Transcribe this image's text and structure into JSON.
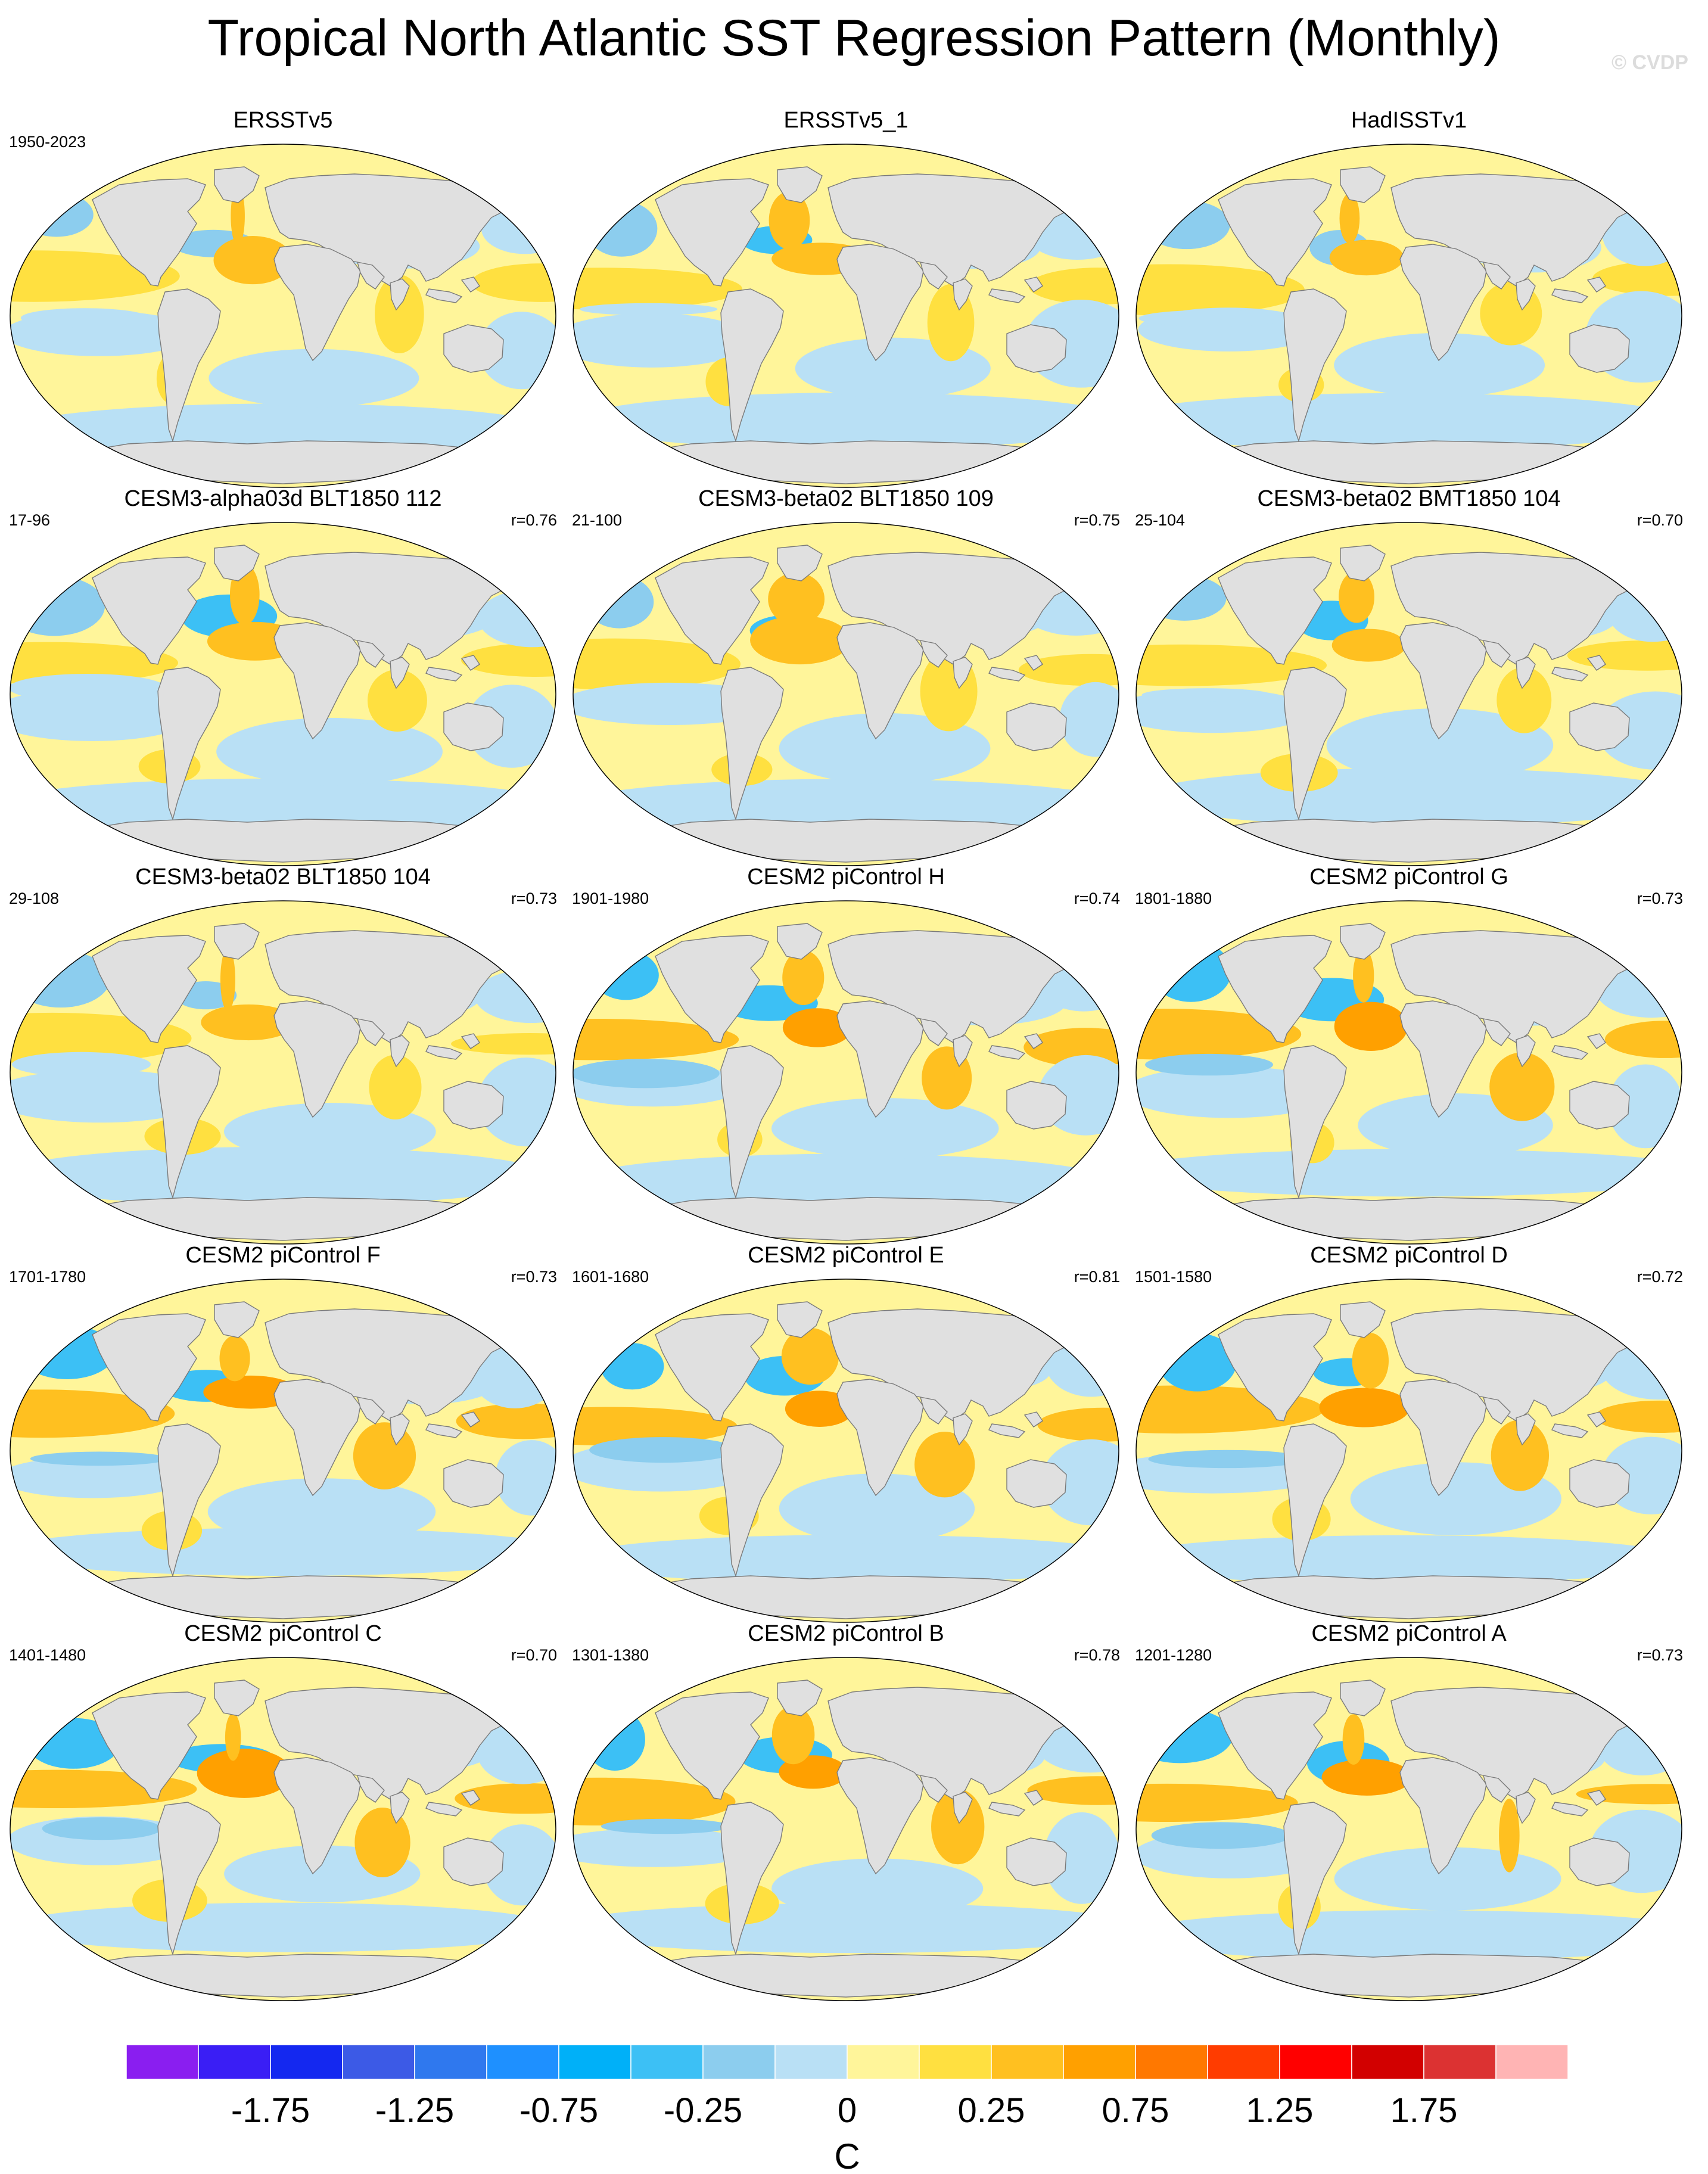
{
  "title": "Tropical North Atlantic SST Regression Pattern (Monthly)",
  "watermark": "© CVDP",
  "land_color": "#e0e0e0",
  "panels": [
    {
      "title": "ERSSTv5",
      "years": "1950-2023",
      "corr": "",
      "pattern": [
        0,
        0
      ]
    },
    {
      "title": "ERSSTv5_1",
      "years": "",
      "corr": "",
      "pattern": [
        1,
        1
      ]
    },
    {
      "title": "HadISSTv1",
      "years": "",
      "corr": "",
      "pattern": [
        0,
        2
      ]
    },
    {
      "title": "CESM3-alpha03d BLT1850 112",
      "years": "17-96",
      "corr": "r=0.76",
      "pattern": [
        1,
        3
      ]
    },
    {
      "title": "CESM3-beta02 BLT1850 109",
      "years": "21-100",
      "corr": "r=0.75",
      "pattern": [
        1,
        4
      ]
    },
    {
      "title": "CESM3-beta02 BMT1850 104",
      "years": "25-104",
      "corr": "r=0.70",
      "pattern": [
        1,
        5
      ]
    },
    {
      "title": "CESM3-beta02 BLT1850 104",
      "years": "29-108",
      "corr": "r=0.73",
      "pattern": [
        0,
        6
      ]
    },
    {
      "title": "CESM2 piControl H",
      "years": "1901-1980",
      "corr": "r=0.74",
      "pattern": [
        2,
        7
      ]
    },
    {
      "title": "CESM2 piControl G",
      "years": "1801-1880",
      "corr": "r=0.73",
      "pattern": [
        2,
        8
      ]
    },
    {
      "title": "CESM2 piControl F",
      "years": "1701-1780",
      "corr": "r=0.73",
      "pattern": [
        3,
        9
      ]
    },
    {
      "title": "CESM2 piControl E",
      "years": "1601-1680",
      "corr": "r=0.81",
      "pattern": [
        2,
        10
      ]
    },
    {
      "title": "CESM2 piControl D",
      "years": "1501-1580",
      "corr": "r=0.72",
      "pattern": [
        3,
        11
      ]
    },
    {
      "title": "CESM2 piControl C",
      "years": "1401-1480",
      "corr": "r=0.70",
      "pattern": [
        2,
        12
      ]
    },
    {
      "title": "CESM2 piControl B",
      "years": "1301-1380",
      "corr": "r=0.78",
      "pattern": [
        2,
        13
      ]
    },
    {
      "title": "CESM2 piControl A",
      "years": "1201-1280",
      "corr": "r=0.73",
      "pattern": [
        2,
        14
      ]
    }
  ],
  "colorbar": {
    "colors": [
      "#8a1ef0",
      "#3a1ef5",
      "#1428f0",
      "#3c5ae6",
      "#2f78ee",
      "#1e90ff",
      "#00b0f8",
      "#3cc0f5",
      "#8ccdee",
      "#b9e0f5",
      "#fff59a",
      "#ffe040",
      "#ffc020",
      "#ffa000",
      "#ff7800",
      "#ff3c00",
      "#ff0000",
      "#d20000",
      "#dc3232",
      "#ffb4b4"
    ],
    "tick_labels": [
      "-1.75",
      "-1.25",
      "-0.75",
      "-0.25",
      "0",
      "0.25",
      "0.75",
      "1.25",
      "1.75"
    ],
    "unit": "C"
  }
}
